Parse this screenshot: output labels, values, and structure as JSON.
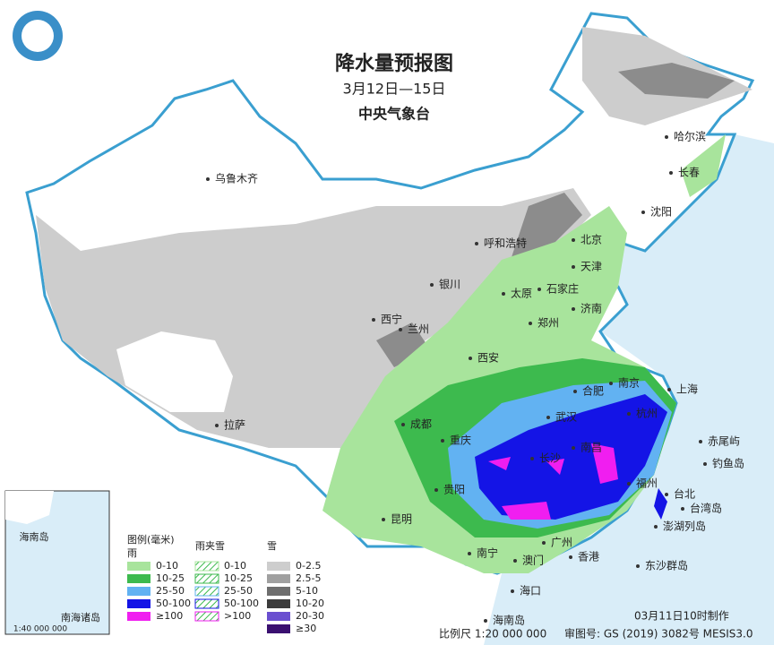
{
  "header": {
    "title": "降水量预报图",
    "date": "3月12日—15日",
    "agency": "中央气象台"
  },
  "cities": [
    "乌鲁木齐",
    "哈尔滨",
    "长春",
    "沈阳",
    "呼和浩特",
    "北京",
    "天津",
    "石家庄",
    "太原",
    "济南",
    "银川",
    "西宁",
    "兰州",
    "郑州",
    "西安",
    "合肥",
    "南京",
    "上海",
    "武汉",
    "杭州",
    "成都",
    "重庆",
    "长沙",
    "南昌",
    "拉萨",
    "贵阳",
    "福州",
    "台北",
    "昆明",
    "南宁",
    "广州",
    "澳门",
    "香港",
    "海口",
    "赤尾屿",
    "钓鱼岛",
    "台湾岛",
    "澎湖列岛",
    "东沙群岛",
    "海南岛"
  ],
  "inset": {
    "islands": "海南岛",
    "label": "南海诸岛",
    "scale": "1:40 000 000"
  },
  "legend": {
    "caption": "图例(毫米)",
    "groups": [
      {
        "name": "雨",
        "items": [
          {
            "label": "0-10",
            "color": "#a8e49c"
          },
          {
            "label": "10-25",
            "color": "#3dba4e"
          },
          {
            "label": "25-50",
            "color": "#62b2f2"
          },
          {
            "label": "50-100",
            "color": "#1414e6"
          },
          {
            "label": "≥100",
            "color": "#f01ef0"
          }
        ]
      },
      {
        "name": "雨夹雪",
        "items": [
          {
            "label": "0-10",
            "color": "#a8e49c"
          },
          {
            "label": "10-25",
            "color": "#3dba4e"
          },
          {
            "label": "25-50",
            "color": "#62b2f2"
          },
          {
            "label": "50-100",
            "color": "#1414e6"
          },
          {
            "label": ">100",
            "color": "#f01ef0"
          }
        ]
      },
      {
        "name": "雪",
        "items": [
          {
            "label": "0-2.5",
            "color": "#cdcdcd"
          },
          {
            "label": "2.5-5",
            "color": "#a0a0a0"
          },
          {
            "label": "5-10",
            "color": "#6e6e6e"
          },
          {
            "label": "10-20",
            "color": "#3c3c3c"
          },
          {
            "label": "20-30",
            "color": "#6a4fd0"
          },
          {
            "label": "≥30",
            "color": "#3a1070"
          }
        ]
      }
    ]
  },
  "footer": {
    "scale": "比例尺 1:20 000 000",
    "review": "审图号: GS (2019) 3082号 MESIS3.0",
    "made": "03月11日10时制作"
  }
}
